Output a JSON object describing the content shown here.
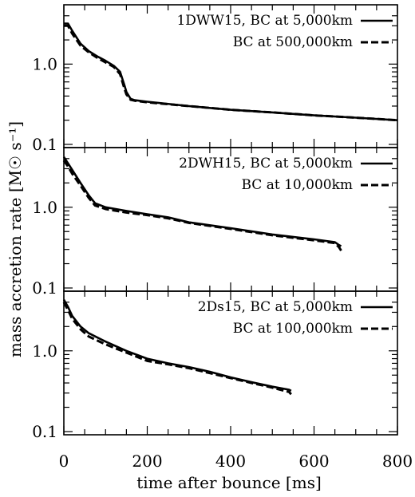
{
  "chart_data": [
    {
      "type": "line",
      "xlabel": "time after bounce [ms]",
      "ylabel": "mass accretion rate [M☉ s⁻¹]",
      "xlim": [
        0,
        800
      ],
      "ylim": [
        0.1,
        5
      ],
      "yscale": "log",
      "y_ticks": [
        "0.1",
        "1.0"
      ],
      "legend_position": "top-right",
      "series": [
        {
          "name": "1DWW15, BC at 5,000km",
          "style": "solid",
          "x": [
            0,
            10,
            20,
            40,
            60,
            80,
            100,
            120,
            135,
            145,
            150,
            160,
            170,
            200,
            300,
            400,
            500,
            600,
            700,
            800
          ],
          "y": [
            3.2,
            3.2,
            2.6,
            1.8,
            1.45,
            1.25,
            1.1,
            0.95,
            0.8,
            0.55,
            0.45,
            0.37,
            0.355,
            0.34,
            0.3,
            0.27,
            0.25,
            0.23,
            0.215,
            0.2
          ]
        },
        {
          "name": "BC at 500,000km",
          "style": "dashed",
          "x": [
            0,
            10,
            20,
            40,
            60,
            80,
            100,
            120,
            135,
            145,
            150,
            160,
            170,
            200,
            300,
            400,
            500,
            600,
            700,
            800
          ],
          "y": [
            3.0,
            3.0,
            2.4,
            1.7,
            1.4,
            1.2,
            1.05,
            0.92,
            0.75,
            0.5,
            0.42,
            0.36,
            0.35,
            0.335,
            0.3,
            0.27,
            0.25,
            0.23,
            0.215,
            0.2
          ]
        }
      ]
    },
    {
      "type": "line",
      "xlabel": "time after bounce [ms]",
      "ylabel": "mass accretion rate [M☉ s⁻¹]",
      "xlim": [
        0,
        800
      ],
      "ylim": [
        0.1,
        5
      ],
      "yscale": "log",
      "y_ticks": [
        "0.1",
        "1.0"
      ],
      "legend_position": "top-right",
      "series": [
        {
          "name": "2DWH15, BC at 5,000km",
          "style": "solid",
          "x": [
            0,
            10,
            20,
            40,
            60,
            75,
            100,
            150,
            200,
            250,
            300,
            400,
            500,
            600,
            650,
            660,
            665
          ],
          "y": [
            4.2,
            3.5,
            2.9,
            2.0,
            1.4,
            1.12,
            1.0,
            0.9,
            0.82,
            0.75,
            0.65,
            0.55,
            0.46,
            0.4,
            0.37,
            0.34,
            0.33
          ]
        },
        {
          "name": "BC at 10,000km",
          "style": "dashed",
          "x": [
            0,
            10,
            20,
            40,
            60,
            75,
            100,
            150,
            200,
            250,
            300,
            400,
            500,
            600,
            650,
            660,
            665
          ],
          "y": [
            3.8,
            3.2,
            2.6,
            1.85,
            1.3,
            1.05,
            0.95,
            0.86,
            0.8,
            0.73,
            0.64,
            0.54,
            0.45,
            0.39,
            0.36,
            0.32,
            0.29
          ]
        }
      ]
    },
    {
      "type": "line",
      "xlabel": "time after bounce [ms]",
      "ylabel": "mass accretion rate [M☉ s⁻¹]",
      "xlim": [
        0,
        800
      ],
      "ylim": [
        0.1,
        5
      ],
      "yscale": "log",
      "y_ticks": [
        "0.1",
        "1.0"
      ],
      "x_ticks": [
        "0",
        "200",
        "400",
        "600",
        "800"
      ],
      "legend_position": "top-right",
      "series": [
        {
          "name": "2Ds15, BC at 5,000km",
          "style": "solid",
          "x": [
            0,
            10,
            20,
            40,
            60,
            100,
            150,
            200,
            250,
            300,
            350,
            400,
            450,
            500,
            540,
            545
          ],
          "y": [
            4.3,
            3.5,
            2.7,
            2.0,
            1.65,
            1.3,
            1.0,
            0.8,
            0.7,
            0.63,
            0.55,
            0.47,
            0.41,
            0.36,
            0.33,
            0.32
          ]
        },
        {
          "name": "BC at 100,000km",
          "style": "dashed",
          "x": [
            0,
            10,
            20,
            40,
            60,
            100,
            150,
            200,
            250,
            300,
            350,
            400,
            450,
            500,
            540,
            545
          ],
          "y": [
            4.0,
            3.2,
            2.5,
            1.85,
            1.5,
            1.2,
            0.95,
            0.75,
            0.68,
            0.61,
            0.53,
            0.46,
            0.4,
            0.35,
            0.31,
            0.29
          ]
        }
      ]
    }
  ]
}
